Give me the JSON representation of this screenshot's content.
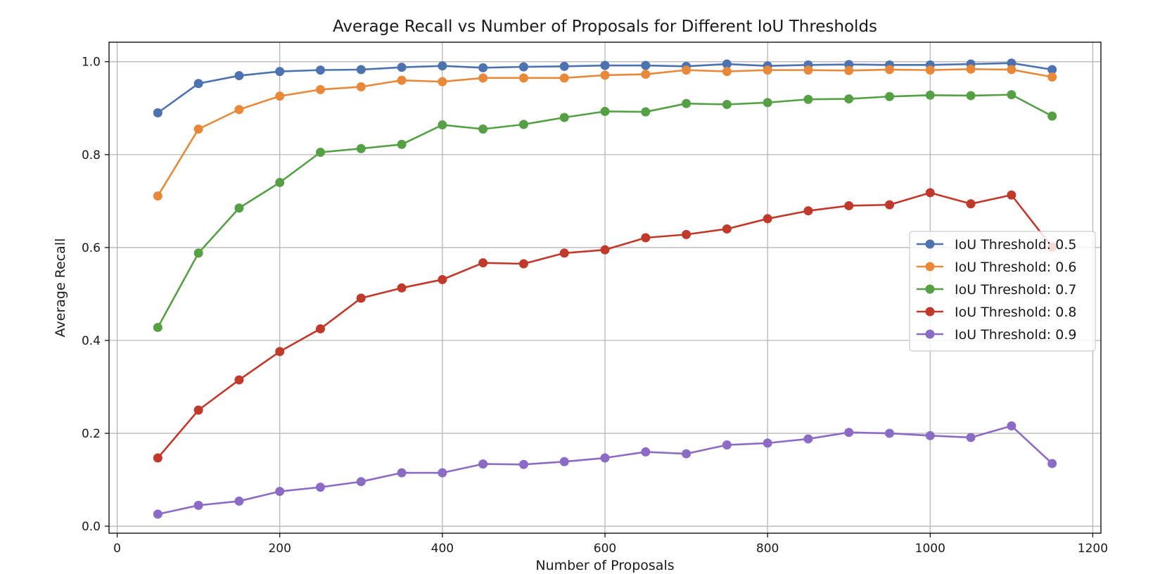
{
  "chart_data": {
    "type": "line",
    "title": "Average Recall vs Number of Proposals for Different IoU Thresholds",
    "xlabel": "Number of Proposals",
    "ylabel": "Average Recall",
    "xlim": [
      -10,
      1210
    ],
    "ylim": [
      -0.015,
      1.042
    ],
    "xticks": [
      0,
      200,
      400,
      600,
      800,
      1000,
      1200
    ],
    "yticks": [
      0.0,
      0.2,
      0.4,
      0.6,
      0.8,
      1.0
    ],
    "xtick_labels": [
      "0",
      "200",
      "400",
      "600",
      "800",
      "1000",
      "1200"
    ],
    "ytick_labels": [
      "0.0",
      "0.2",
      "0.4",
      "0.6",
      "0.8",
      "1.0"
    ],
    "grid": true,
    "legend_position": "center-right",
    "x": [
      50,
      100,
      150,
      200,
      250,
      300,
      350,
      400,
      450,
      500,
      550,
      600,
      650,
      700,
      750,
      800,
      850,
      900,
      950,
      1000,
      1050,
      1100,
      1150
    ],
    "series": [
      {
        "name": "IoU Threshold: 0.5",
        "color": "#4c72b0",
        "values": [
          0.89,
          0.953,
          0.97,
          0.979,
          0.982,
          0.983,
          0.988,
          0.991,
          0.987,
          0.989,
          0.99,
          0.992,
          0.992,
          0.99,
          0.995,
          0.991,
          0.993,
          0.994,
          0.993,
          0.993,
          0.995,
          0.997,
          0.983
        ]
      },
      {
        "name": "IoU Threshold: 0.6",
        "color": "#e8893a",
        "values": [
          0.711,
          0.855,
          0.897,
          0.926,
          0.94,
          0.946,
          0.96,
          0.957,
          0.965,
          0.965,
          0.965,
          0.971,
          0.973,
          0.982,
          0.979,
          0.982,
          0.982,
          0.981,
          0.983,
          0.982,
          0.984,
          0.983,
          0.967
        ]
      },
      {
        "name": "IoU Threshold: 0.7",
        "color": "#55a045",
        "values": [
          0.428,
          0.588,
          0.685,
          0.74,
          0.805,
          0.813,
          0.822,
          0.864,
          0.855,
          0.865,
          0.88,
          0.893,
          0.892,
          0.91,
          0.908,
          0.912,
          0.919,
          0.92,
          0.925,
          0.928,
          0.927,
          0.929,
          0.883
        ]
      },
      {
        "name": "IoU Threshold: 0.8",
        "color": "#c0392b",
        "values": [
          0.147,
          0.25,
          0.315,
          0.376,
          0.425,
          0.491,
          0.513,
          0.531,
          0.567,
          0.565,
          0.588,
          0.595,
          0.621,
          0.628,
          0.64,
          0.662,
          0.679,
          0.69,
          0.692,
          0.718,
          0.694,
          0.713,
          0.601
        ]
      },
      {
        "name": "IoU Threshold: 0.9",
        "color": "#8c6bc4",
        "values": [
          0.026,
          0.045,
          0.054,
          0.075,
          0.084,
          0.096,
          0.115,
          0.115,
          0.134,
          0.133,
          0.139,
          0.147,
          0.16,
          0.156,
          0.175,
          0.179,
          0.188,
          0.202,
          0.2,
          0.195,
          0.191,
          0.216,
          0.135
        ]
      }
    ]
  }
}
